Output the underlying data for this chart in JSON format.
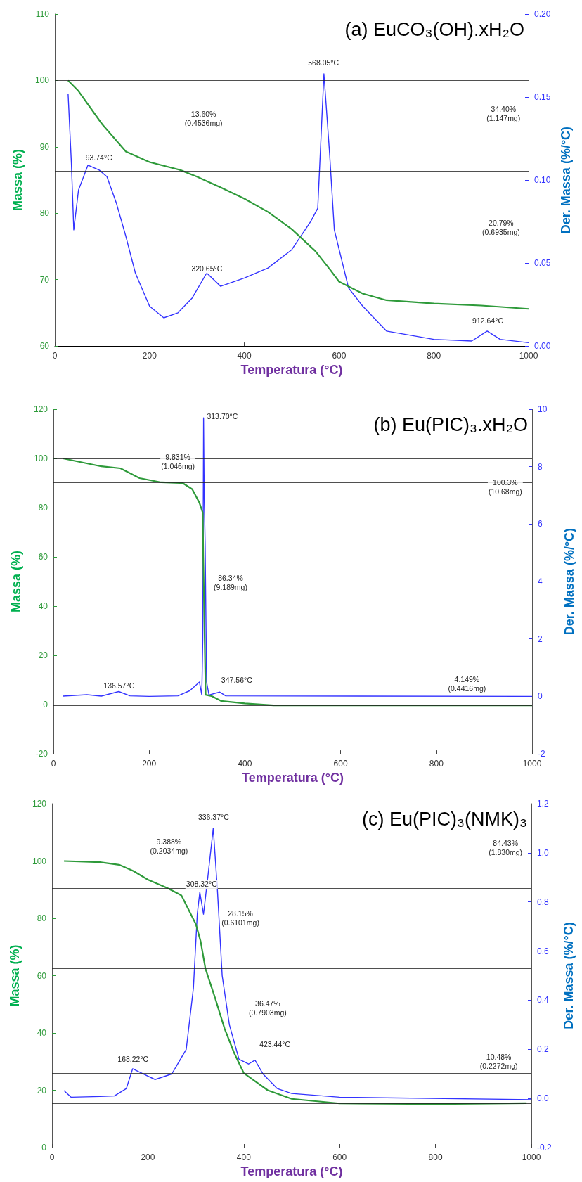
{
  "chart_data": [
    {
      "type": "line",
      "title": "(a) EuCO₃(OH).xH₂O",
      "xlabel": "Temperatura (°C)",
      "ylabel": "Massa (%)",
      "y2label": "Der. Massa (%/°C)",
      "grid": false,
      "xlim": [
        0,
        1000
      ],
      "xticks": [
        0,
        200,
        400,
        600,
        800,
        1000
      ],
      "ylim": [
        60,
        110
      ],
      "yticks": [
        60,
        70,
        80,
        90,
        100,
        110
      ],
      "y2lim": [
        0,
        0.2
      ],
      "y2ticks": [
        {
          "value": 0,
          "label": "0.00"
        },
        0.05,
        {
          "value": 0.1,
          "label": "0.10"
        },
        0.15,
        {
          "value": 0.2,
          "label": "0.20"
        }
      ],
      "series": [
        {
          "color": "#2e9a3a",
          "x": [
            28,
            50,
            100,
            150,
            200,
            265,
            300,
            350,
            400,
            450,
            500,
            550,
            580,
            600,
            650,
            700,
            800,
            900,
            1000
          ],
          "values": [
            100,
            98.4,
            93.4,
            89.3,
            87.7,
            86.5,
            85.5,
            83.9,
            82.2,
            80.2,
            77.6,
            74.3,
            71.6,
            69.7,
            67.9,
            66.9,
            66.4,
            66.1,
            65.6
          ]
        },
        {
          "color": "#3333ff",
          "axis": "y2",
          "x": [
            28,
            35,
            40,
            50,
            70,
            93.74,
            110,
            130,
            150,
            170,
            200,
            230,
            260,
            290,
            320.65,
            350,
            400,
            450,
            500,
            540,
            555,
            568.05,
            580,
            590,
            620,
            650,
            700,
            800,
            880,
            912.64,
            940,
            1000
          ],
          "values": [
            0.152,
            0.11,
            0.07,
            0.094,
            0.109,
            0.106,
            0.102,
            0.086,
            0.066,
            0.044,
            0.024,
            0.017,
            0.02,
            0.029,
            0.044,
            0.036,
            0.041,
            0.047,
            0.058,
            0.075,
            0.083,
            0.164,
            0.116,
            0.07,
            0.035,
            0.024,
            0.009,
            0.004,
            0.003,
            0.009,
            0.004,
            0.002
          ]
        }
      ],
      "ref_lines": [
        {
          "axis": "y",
          "value": 100
        },
        {
          "axis": "y",
          "value": 86.4
        },
        {
          "axis": "y",
          "value": 65.6
        }
      ],
      "annotations": [
        "568.05°C",
        "93.74°C",
        "320.65°C",
        "912.64°C",
        "13.60%\n(0.4536mg)",
        "34.40%\n(1.147mg)",
        "20.79%\n(0.6935mg)"
      ]
    },
    {
      "type": "line",
      "title": "(b) Eu(PIC)₃.xH₂O",
      "xlabel": "Temperatura (°C)",
      "ylabel": "Massa (%)",
      "y2label": "Der. Massa (%/°C)",
      "grid": false,
      "xlim": [
        0,
        1000
      ],
      "xticks": [
        0,
        200,
        400,
        600,
        800,
        1000
      ],
      "ylim": [
        -20,
        120
      ],
      "yticks": [
        -20,
        0,
        20,
        40,
        60,
        80,
        100,
        120
      ],
      "y2lim": [
        -2,
        10
      ],
      "y2ticks": [
        -2,
        0,
        2,
        4,
        6,
        8,
        10
      ],
      "series": [
        {
          "color": "#2e9a3a",
          "x": [
            20,
            100,
            140,
            180,
            225,
            270,
            290,
            305,
            312,
            313,
            318,
            330,
            350,
            400,
            460,
            1000
          ],
          "values": [
            100,
            96.8,
            96,
            92,
            90.3,
            90,
            87.5,
            82,
            78,
            60,
            4,
            3.5,
            1.5,
            0.5,
            -0.3,
            -0.3
          ]
        },
        {
          "color": "#3333ff",
          "axis": "y2",
          "x": [
            20,
            70,
            100,
            136.57,
            160,
            200,
            260,
            285,
            305,
            310,
            312,
            313.7,
            315,
            317,
            320,
            325,
            347.56,
            360,
            1000
          ],
          "values": [
            0.01,
            0.06,
            0.01,
            0.17,
            0.02,
            0,
            0.02,
            0.2,
            0.5,
            0.05,
            2,
            9.7,
            7,
            5.3,
            0.5,
            0.05,
            0.15,
            0.02,
            0
          ]
        }
      ],
      "ref_lines": [
        {
          "axis": "y",
          "value": 100
        },
        {
          "axis": "y",
          "value": 90.17
        },
        {
          "axis": "y",
          "value": 3.83
        },
        {
          "axis": "y",
          "value": -0.32
        }
      ],
      "annotations": [
        "313.70°C",
        "9.831%\n(1.046mg)",
        "100.3%\n(10.68mg)",
        "86.34%\n(9.189mg)",
        "136.57°C",
        "347.56°C",
        "4.149%\n(0.4416mg)"
      ]
    },
    {
      "type": "line",
      "title": "(c) Eu(PIC)₃(NMK)₃",
      "xlabel": "Temperatura (°C)",
      "ylabel": "Massa (%)",
      "y2label": "Der. Massa (%/°C)",
      "grid": false,
      "xlim": [
        0,
        1000
      ],
      "xticks": [
        0,
        200,
        400,
        600,
        800,
        1000
      ],
      "ylim": [
        0,
        120
      ],
      "yticks": [
        0,
        20,
        40,
        60,
        80,
        100,
        120
      ],
      "y2lim": [
        -0.2,
        1.2
      ],
      "y2ticks": [
        -0.2,
        {
          "value": 0,
          "label": "0.0"
        },
        0.2,
        0.4,
        0.6,
        0.8,
        {
          "value": 1,
          "label": "1.0"
        },
        1.2
      ],
      "series": [
        {
          "color": "#2e9a3a",
          "x": [
            25,
            100,
            140,
            170,
            200,
            240,
            270,
            300,
            310,
            320,
            340,
            360,
            380,
            400,
            450,
            500,
            600,
            800,
            990
          ],
          "values": [
            100,
            99.6,
            98.7,
            96.5,
            93.5,
            90.6,
            88,
            78,
            72,
            62.5,
            52.3,
            41.5,
            33,
            26,
            20,
            17,
            15.4,
            15.2,
            15.5
          ]
        },
        {
          "color": "#3333ff",
          "axis": "y2",
          "x": [
            25,
            40,
            100,
            130,
            155,
            168.22,
            190,
            215,
            250,
            280,
            295,
            303,
            308.32,
            316,
            325,
            336.37,
            345,
            355,
            370,
            390,
            410,
            423.44,
            440,
            470,
            500,
            600,
            1000
          ],
          "values": [
            0.032,
            0.005,
            0.008,
            0.01,
            0.04,
            0.121,
            0.1,
            0.077,
            0.1,
            0.2,
            0.45,
            0.75,
            0.84,
            0.75,
            0.9,
            1.1,
            0.85,
            0.5,
            0.3,
            0.16,
            0.14,
            0.156,
            0.1,
            0.04,
            0.02,
            0.005,
            -0.005
          ]
        }
      ],
      "ref_lines": [
        {
          "axis": "y",
          "value": 100
        },
        {
          "axis": "y",
          "value": 90.6
        },
        {
          "axis": "y",
          "value": 62.46
        },
        {
          "axis": "y",
          "value": 25.99
        },
        {
          "axis": "y",
          "value": 15.51
        }
      ],
      "annotations": [
        "336.37°C",
        "9.388%\n(0.2034mg)",
        "84.43%\n(1.830mg)",
        "308.32°C",
        "28.15%\n(0.6101mg)",
        "36.47%\n(0.7903mg)",
        "423.44°C",
        "168.22°C",
        "10.48%\n(0.2272mg)"
      ]
    }
  ]
}
